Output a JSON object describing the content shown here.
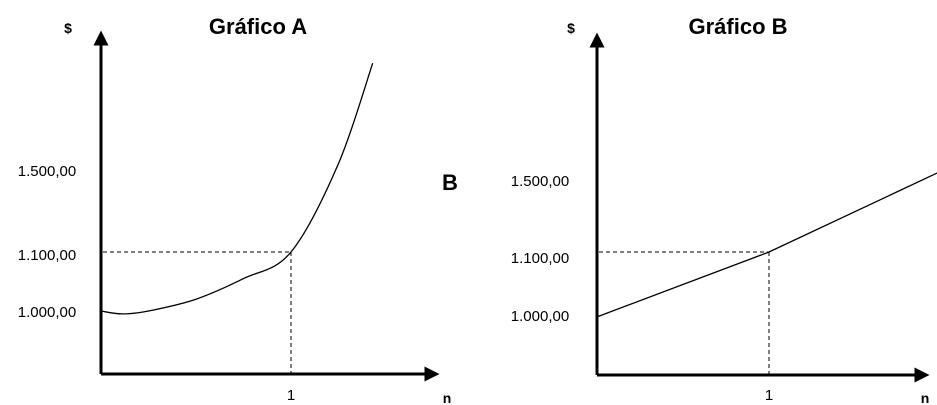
{
  "stray_label": "B",
  "chart_data": [
    {
      "type": "line",
      "title": "Gráfico A",
      "ylabel": "$",
      "xlabel": "n",
      "x_ticks": [
        "1"
      ],
      "y_ticks": [
        "1.000,00",
        "1.100,00",
        "1.500,00"
      ],
      "y_tick_values": [
        1000,
        1100,
        1500
      ],
      "reference": {
        "x": 1,
        "y": 1100
      },
      "series": [
        {
          "shape": "curve",
          "x": [
            0,
            0.11,
            0.25,
            0.5,
            0.75,
            1.0,
            1.25,
            1.43
          ],
          "values": [
            1000,
            995,
            1000,
            1020,
            1055,
            1100,
            1250,
            1420
          ]
        }
      ],
      "grid": false
    },
    {
      "type": "line",
      "title": "Gráfico B",
      "ylabel": "$",
      "xlabel": "n",
      "x_ticks": [
        "1"
      ],
      "y_ticks": [
        "1.000,00",
        "1.100,00",
        "1.500,00"
      ],
      "y_tick_values": [
        1000,
        1100,
        1500
      ],
      "reference": {
        "x": 1,
        "y": 1100
      },
      "series": [
        {
          "shape": "straight",
          "x": [
            0,
            1.0,
            2.0
          ],
          "values": [
            990,
            1100,
            1237
          ]
        }
      ],
      "grid": false
    }
  ]
}
